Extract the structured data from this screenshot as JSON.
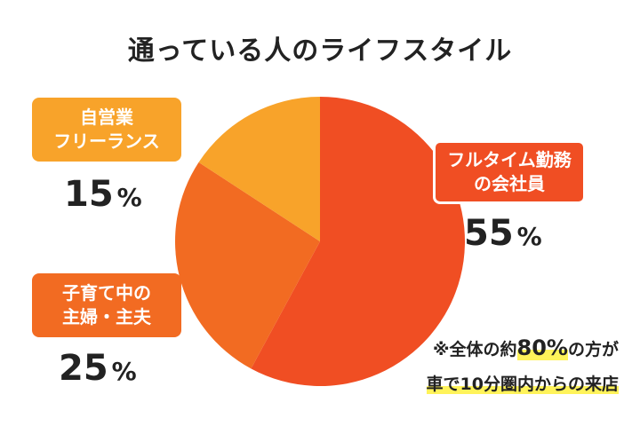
{
  "title": "通っている人のライフスタイル",
  "colors": {
    "full_time": "#f04e23",
    "homemaker": "#f26b22",
    "freelance": "#f8a32a",
    "highlight": "#fff35a"
  },
  "chart_data": {
    "type": "pie",
    "title": "通っている人のライフスタイル",
    "slices": [
      {
        "label_lines": [
          "フルタイム勤務",
          "の会社員"
        ],
        "value": 55,
        "unit": "%",
        "color": "#f04e23"
      },
      {
        "label_lines": [
          "子育て中の",
          "主婦・主夫"
        ],
        "value": 25,
        "unit": "%",
        "color": "#f26b22"
      },
      {
        "label_lines": [
          "自営業",
          "フリーランス"
        ],
        "value": 15,
        "unit": "%",
        "color": "#f8a32a"
      }
    ]
  },
  "note": {
    "line1_prefix": "※全体の約",
    "line1_value": "80%",
    "line1_suffix": "の方が",
    "line2": "車で10分圏内からの来店"
  }
}
